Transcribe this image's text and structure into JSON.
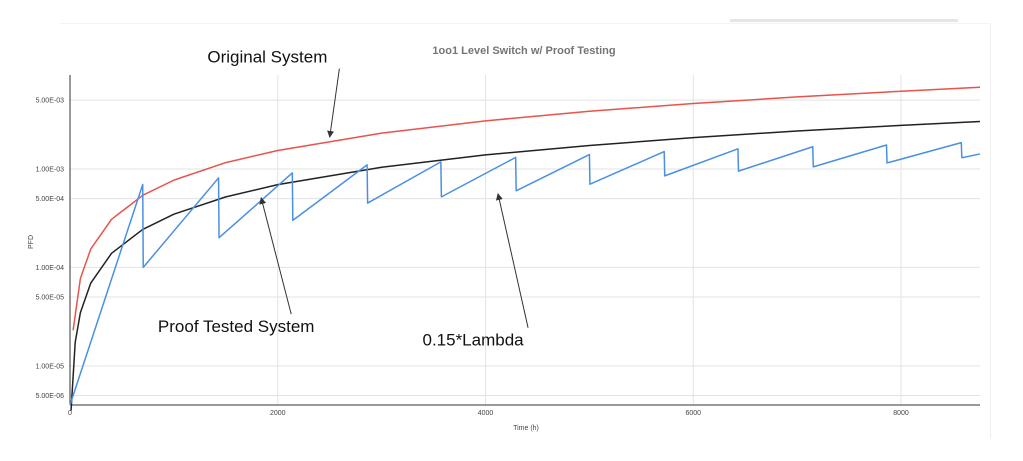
{
  "chart_data": {
    "type": "line",
    "title": "1oo1 Level Switch w/ Proof Testing",
    "xlabel": "Time (h)",
    "ylabel": "PFD",
    "xlim": [
      0,
      8760
    ],
    "ylim": [
      4e-06,
      0.009
    ],
    "y_scale": "log",
    "grid": true,
    "legend": "none",
    "x_ticks": [
      {
        "value": 0,
        "label": "0"
      },
      {
        "value": 2000,
        "label": "2000"
      },
      {
        "value": 4000,
        "label": "4000"
      },
      {
        "value": 6000,
        "label": "6000"
      },
      {
        "value": 8000,
        "label": "8000"
      }
    ],
    "y_ticks": [
      {
        "value": 5e-06,
        "label": "5.00E-06"
      },
      {
        "value": 1e-05,
        "label": "1.00E-05"
      },
      {
        "value": 5e-05,
        "label": "5.00E-05"
      },
      {
        "value": 0.0001,
        "label": "1.00E-04"
      },
      {
        "value": 0.0005,
        "label": "5.00E-04"
      },
      {
        "value": 0.001,
        "label": "1.00E-03"
      },
      {
        "value": 0.005,
        "label": "5.00E-03"
      }
    ],
    "series": [
      {
        "color": "#e8534b",
        "x": [
          30,
          100,
          200,
          400,
          700,
          1000,
          1500,
          2000,
          3000,
          4000,
          5000,
          6000,
          7000,
          8000,
          8760
        ],
        "y": [
          2.3e-05,
          7.7e-05,
          0.000154,
          0.000308,
          0.00054,
          0.00077,
          0.00116,
          0.00154,
          0.00231,
          0.00308,
          0.00385,
          0.00462,
          0.00539,
          0.00616,
          0.00675
        ]
      },
      {
        "color": "#222222",
        "x": [
          10,
          50,
          100,
          200,
          400,
          700,
          1000,
          1500,
          2000,
          3000,
          4000,
          5000,
          6000,
          7000,
          8000,
          8760
        ],
        "y": [
          3.5e-06,
          1.73e-05,
          3.47e-05,
          6.93e-05,
          0.000139,
          0.000243,
          0.000347,
          0.00052,
          0.000693,
          0.00104,
          0.00139,
          0.00173,
          0.00208,
          0.00243,
          0.00277,
          0.00303
        ]
      },
      {
        "color": "#4a90e2",
        "x": [
          0,
          700,
          705,
          1430,
          1435,
          2140,
          2145,
          2860,
          2865,
          3570,
          3575,
          4290,
          4295,
          5000,
          5005,
          5720,
          5725,
          6430,
          6435,
          7150,
          7155,
          7860,
          7865,
          8580,
          8585,
          8760
        ],
        "y": [
          0.0,
          0.000695,
          0.0001,
          0.00081,
          0.0002,
          0.00091,
          0.0003,
          0.0011,
          0.00045,
          0.00118,
          0.00052,
          0.00131,
          0.0006,
          0.0014,
          0.0007,
          0.0015,
          0.00085,
          0.0016,
          0.00095,
          0.00168,
          0.00105,
          0.00175,
          0.00115,
          0.00185,
          0.0013,
          0.00142
        ]
      }
    ],
    "annotations": [
      {
        "text": "Original System",
        "x": 1900,
        "y": 0.012,
        "arrow_to": [
          2500,
          0.0021
        ]
      },
      {
        "text": "Proof Tested System",
        "x": 1600,
        "y": 2.2e-05,
        "arrow_to": [
          1840,
          0.00051
        ]
      },
      {
        "text": "0.15*Lambda",
        "x": 3880,
        "y": 1.6e-05,
        "arrow_to": [
          4120,
          0.00056
        ]
      }
    ]
  }
}
